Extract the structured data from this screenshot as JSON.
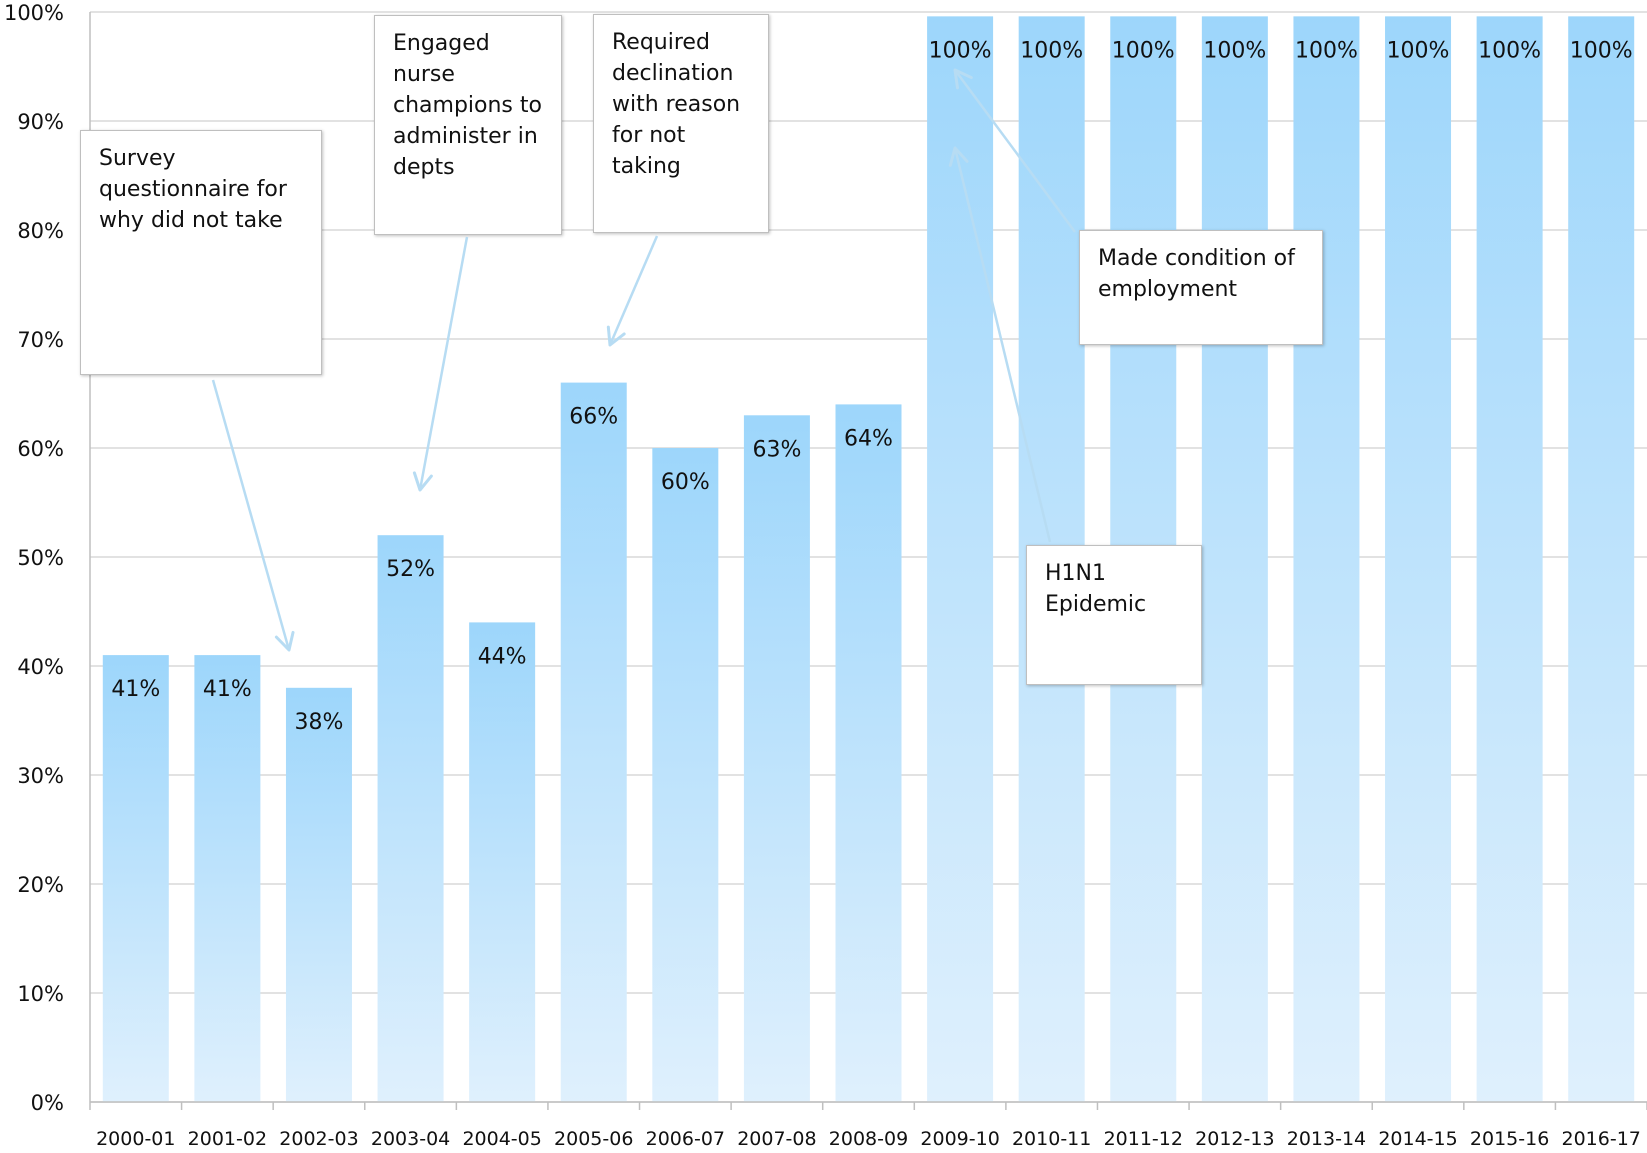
{
  "chart_data": {
    "type": "bar",
    "title": "",
    "xlabel": "",
    "ylabel": "",
    "categories": [
      "2000-01",
      "2001-02",
      "2002-03",
      "2003-04",
      "2004-05",
      "2005-06",
      "2006-07",
      "2007-08",
      "2008-09",
      "2009-10",
      "2010-11",
      "2011-12",
      "2012-13",
      "2013-14",
      "2014-15",
      "2015-16",
      "2016-17"
    ],
    "values": [
      41,
      41,
      38,
      52,
      44,
      66,
      60,
      63,
      64,
      100,
      100,
      100,
      100,
      100,
      100,
      100,
      100
    ],
    "data_labels": [
      "41%",
      "41%",
      "38%",
      "52%",
      "44%",
      "66%",
      "60%",
      "63%",
      "64%",
      "100%",
      "100%",
      "100%",
      "100%",
      "100%",
      "100%",
      "100%",
      "100%"
    ],
    "ylim": [
      0,
      100
    ],
    "yticks": [
      "0%",
      "10%",
      "20%",
      "30%",
      "40%",
      "50%",
      "60%",
      "70%",
      "80%",
      "90%",
      "100%"
    ],
    "grid": true,
    "legend": "none",
    "bar_color_top": "#9dd6fb",
    "bar_color_bottom": "#dff0fd",
    "grid_color": "#d9d9d9",
    "axis_color": "#bfbfbf",
    "arrow_color": "#b7dcf3",
    "annotations": [
      {
        "id": "survey",
        "lines": [
          "Survey",
          "questionnaire for",
          "why did not take"
        ],
        "target_category": "2002-03"
      },
      {
        "id": "nurse",
        "lines": [
          "Engaged",
          "nurse",
          "champions to",
          "administer in",
          "depts"
        ],
        "target_category": "2003-04"
      },
      {
        "id": "declination",
        "lines": [
          "Required",
          "declination",
          "with reason",
          "for not",
          "taking"
        ],
        "target_category": "2005-06"
      },
      {
        "id": "condition",
        "lines": [
          "Made condition of",
          "employment"
        ],
        "target_category": "2009-10"
      },
      {
        "id": "h1n1",
        "lines": [
          "H1N1",
          "Epidemic"
        ],
        "target_category": "2009-10"
      }
    ]
  }
}
